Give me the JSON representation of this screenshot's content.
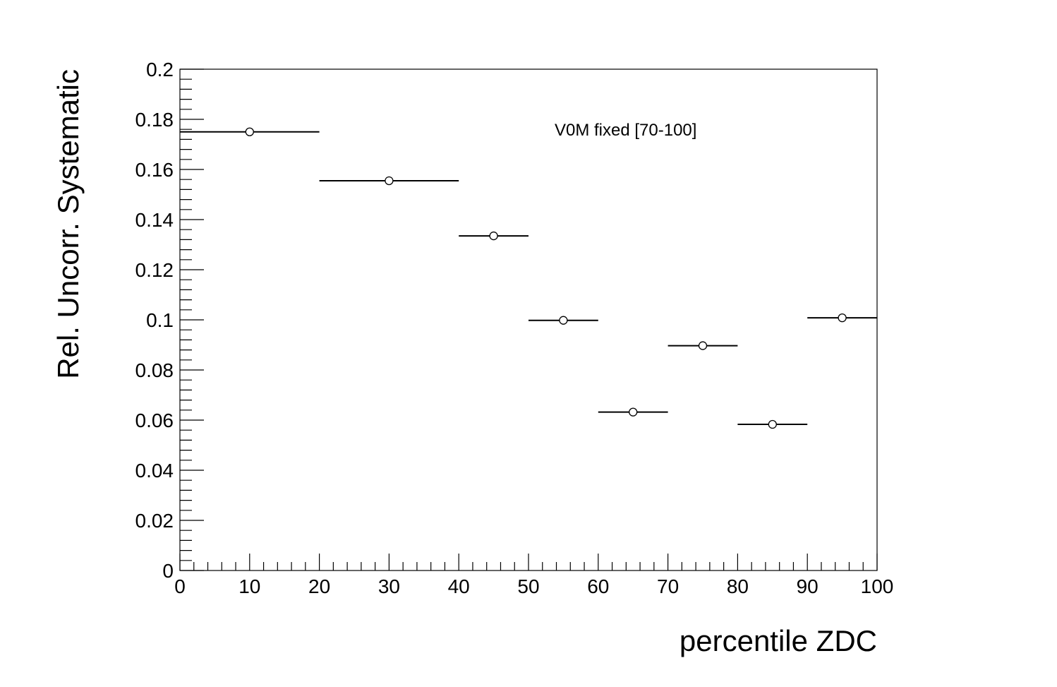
{
  "chart_data": {
    "type": "scatter",
    "title": "",
    "xlabel": "percentile ZDC",
    "ylabel": "Rel. Uncorr. Systematic",
    "xlim": [
      0,
      100
    ],
    "ylim": [
      0,
      0.2
    ],
    "grid": false,
    "x_ticks": [
      "0",
      "10",
      "20",
      "30",
      "40",
      "50",
      "60",
      "70",
      "80",
      "90",
      "100"
    ],
    "y_ticks": [
      "0",
      "0.02",
      "0.04",
      "0.06",
      "0.08",
      "0.1",
      "0.12",
      "0.14",
      "0.16",
      "0.18",
      "0.2"
    ],
    "annotation": "V0M fixed [70-100]",
    "points": [
      {
        "x": 10,
        "x_low": 0,
        "x_high": 20,
        "y": 0.175
      },
      {
        "x": 30,
        "x_low": 20,
        "x_high": 40,
        "y": 0.1555
      },
      {
        "x": 45,
        "x_low": 40,
        "x_high": 50,
        "y": 0.1335
      },
      {
        "x": 55,
        "x_low": 50,
        "x_high": 60,
        "y": 0.0998
      },
      {
        "x": 65,
        "x_low": 60,
        "x_high": 70,
        "y": 0.0632
      },
      {
        "x": 75,
        "x_low": 70,
        "x_high": 80,
        "y": 0.0897
      },
      {
        "x": 85,
        "x_low": 80,
        "x_high": 90,
        "y": 0.0583
      },
      {
        "x": 95,
        "x_low": 90,
        "x_high": 100,
        "y": 0.1008
      }
    ]
  }
}
